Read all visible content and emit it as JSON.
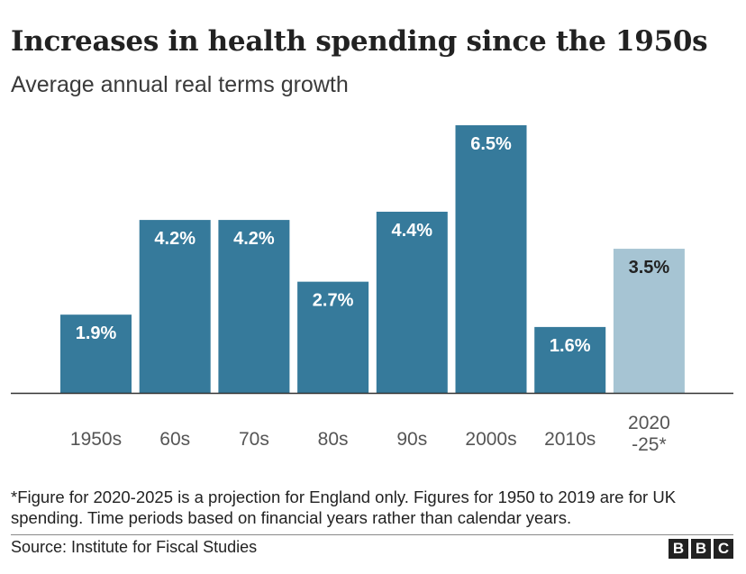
{
  "title": "Increases in health spending since the 1950s",
  "subtitle": "Average annual real terms growth",
  "chart_data": {
    "type": "bar",
    "categories": [
      "1950s",
      "60s",
      "70s",
      "80s",
      "90s",
      "2000s",
      "2010s",
      "2020\n-25*"
    ],
    "values": [
      1.9,
      4.2,
      4.2,
      2.7,
      4.4,
      6.5,
      1.6,
      3.5
    ],
    "value_labels": [
      "1.9%",
      "4.2%",
      "4.2%",
      "2.7%",
      "4.4%",
      "6.5%",
      "1.6%",
      "3.5%"
    ],
    "projected": [
      false,
      false,
      false,
      false,
      false,
      false,
      false,
      true
    ],
    "colors": {
      "actual": "#367a9b",
      "projection": "#a6c4d3",
      "label_on_actual": "#ffffff",
      "label_on_projection": "#222222"
    },
    "ylim": [
      0,
      6.5
    ],
    "grid": false,
    "legend": "none"
  },
  "footnote": "*Figure for 2020-2025 is a projection for England only. Figures for 1950 to 2019 are for UK spending. Time periods based on financial years rather than calendar years.",
  "source": "Source: Institute for Fiscal Studies",
  "logo": [
    "B",
    "B",
    "C"
  ]
}
